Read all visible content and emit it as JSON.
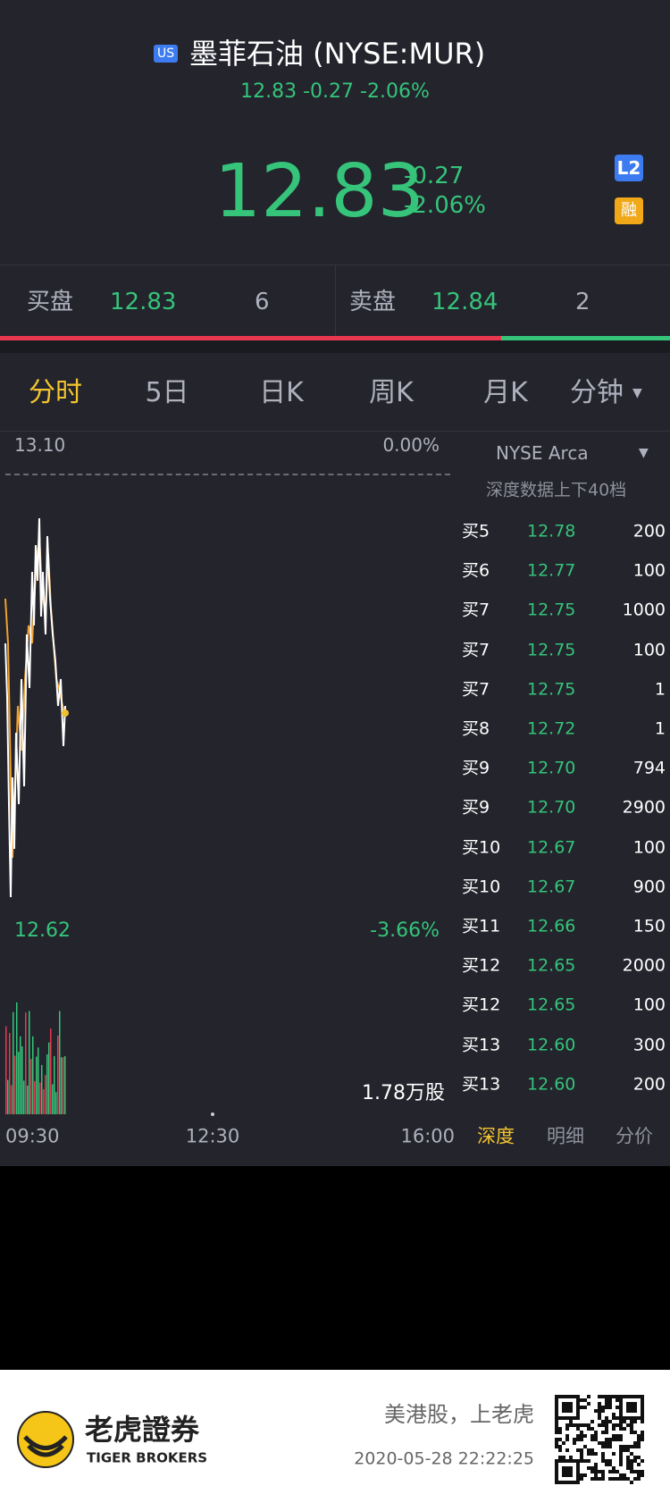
{
  "header": {
    "badge": "US",
    "title": "墨菲石油 (NYSE:MUR)",
    "subtitle": "12.83 -0.27 -2.06%"
  },
  "quote": {
    "price": "12.83",
    "change": "-0.27",
    "change_pct": "-2.06%",
    "badges": [
      "L2",
      "融"
    ]
  },
  "bid_ask": {
    "bid": {
      "label": "买盘",
      "price": "12.83",
      "size": "6"
    },
    "ask": {
      "label": "卖盘",
      "price": "12.84",
      "size": "2"
    }
  },
  "tabs": [
    "分时",
    "5日",
    "日K",
    "周K",
    "月K",
    "分钟"
  ],
  "chart": {
    "high": "13.10",
    "high_pct": "0.00%",
    "low": "12.62",
    "low_pct": "-3.66%",
    "volume": "1.78万股",
    "times": [
      "09:30",
      "12:30",
      "16:00"
    ]
  },
  "depth": {
    "exchange": "NYSE Arca",
    "note": "深度数据上下40档",
    "rows": [
      [
        "买5",
        "12.78",
        "200"
      ],
      [
        "买6",
        "12.77",
        "100"
      ],
      [
        "买7",
        "12.75",
        "1000"
      ],
      [
        "买7",
        "12.75",
        "100"
      ],
      [
        "买7",
        "12.75",
        "1"
      ],
      [
        "买8",
        "12.72",
        "1"
      ],
      [
        "买9",
        "12.70",
        "794"
      ],
      [
        "买9",
        "12.70",
        "2900"
      ],
      [
        "买10",
        "12.67",
        "100"
      ],
      [
        "买10",
        "12.67",
        "900"
      ],
      [
        "买11",
        "12.66",
        "150"
      ],
      [
        "买12",
        "12.65",
        "2000"
      ],
      [
        "买12",
        "12.65",
        "100"
      ],
      [
        "买13",
        "12.60",
        "300"
      ],
      [
        "买13",
        "12.60",
        "200"
      ]
    ],
    "tabs": [
      "深度",
      "明细",
      "分价"
    ]
  },
  "footer": {
    "brand_cn": "老虎證券",
    "brand_en": "TIGER BROKERS",
    "slogan": "美港股，上老虎",
    "timestamp": "2020-05-28 22:22:25"
  }
}
